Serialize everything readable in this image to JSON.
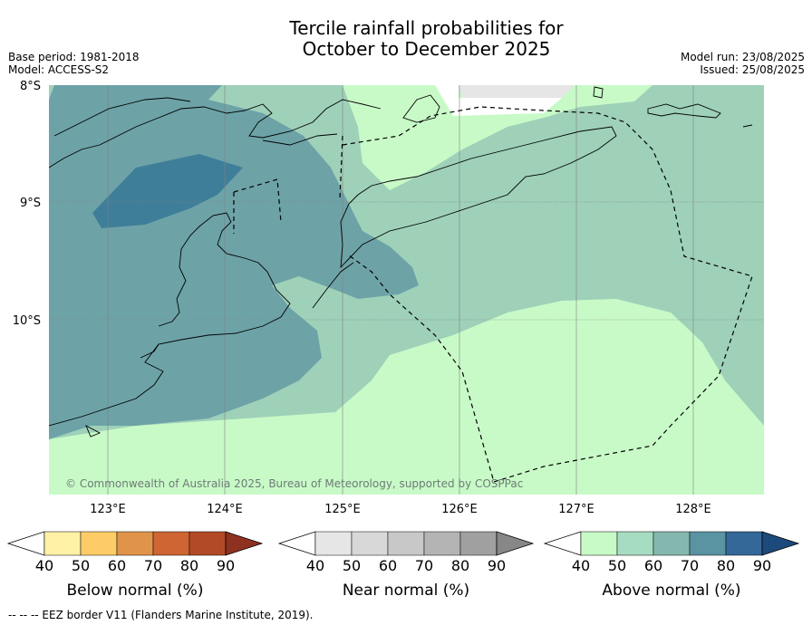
{
  "title": {
    "line1": "Tercile rainfall probabilities for",
    "line2": "October to December 2025"
  },
  "meta": {
    "base_period": "Base period: 1981-2018",
    "model": "Model: ACCESS-S2",
    "model_run": "Model run: 23/08/2025",
    "issued": "Issued: 25/08/2025"
  },
  "map": {
    "lat_labels": [
      "8°S",
      "9°S",
      "10°S"
    ],
    "lon_labels": [
      "123°E",
      "124°E",
      "125°E",
      "126°E",
      "127°E",
      "128°E"
    ],
    "copyright": "© Commonwealth of Australia 2025, Bureau of Meteorology, supported by COSPPac",
    "colors": {
      "above_40": "#c8fac8",
      "above_50": "#9ed1b8",
      "above_60": "#70a8a8",
      "above_70": "#5e97a8",
      "near_40": "#e6e6e6"
    }
  },
  "colorbars": [
    {
      "label": "Below normal (%)",
      "ticks": [
        "40",
        "50",
        "60",
        "70",
        "80",
        "90"
      ],
      "colors": [
        "#fff1a6",
        "#fdcc66",
        "#e0944a",
        "#ce6532",
        "#b34a27",
        "#8f3121"
      ]
    },
    {
      "label": "Near normal (%)",
      "ticks": [
        "40",
        "50",
        "60",
        "70",
        "80",
        "90"
      ],
      "colors": [
        "#e6e6e6",
        "#d8d8d8",
        "#c8c8c8",
        "#b4b4b4",
        "#a0a0a0",
        "#878787"
      ]
    },
    {
      "label": "Above normal (%)",
      "ticks": [
        "40",
        "50",
        "60",
        "70",
        "80",
        "90"
      ],
      "colors": [
        "#c8fac8",
        "#a6dcc1",
        "#84b8ae",
        "#5a93a2",
        "#336898",
        "#1d4a7c"
      ]
    }
  ],
  "footer": "--  --  -- EEZ border V11 (Flanders Marine Institute, 2019)."
}
